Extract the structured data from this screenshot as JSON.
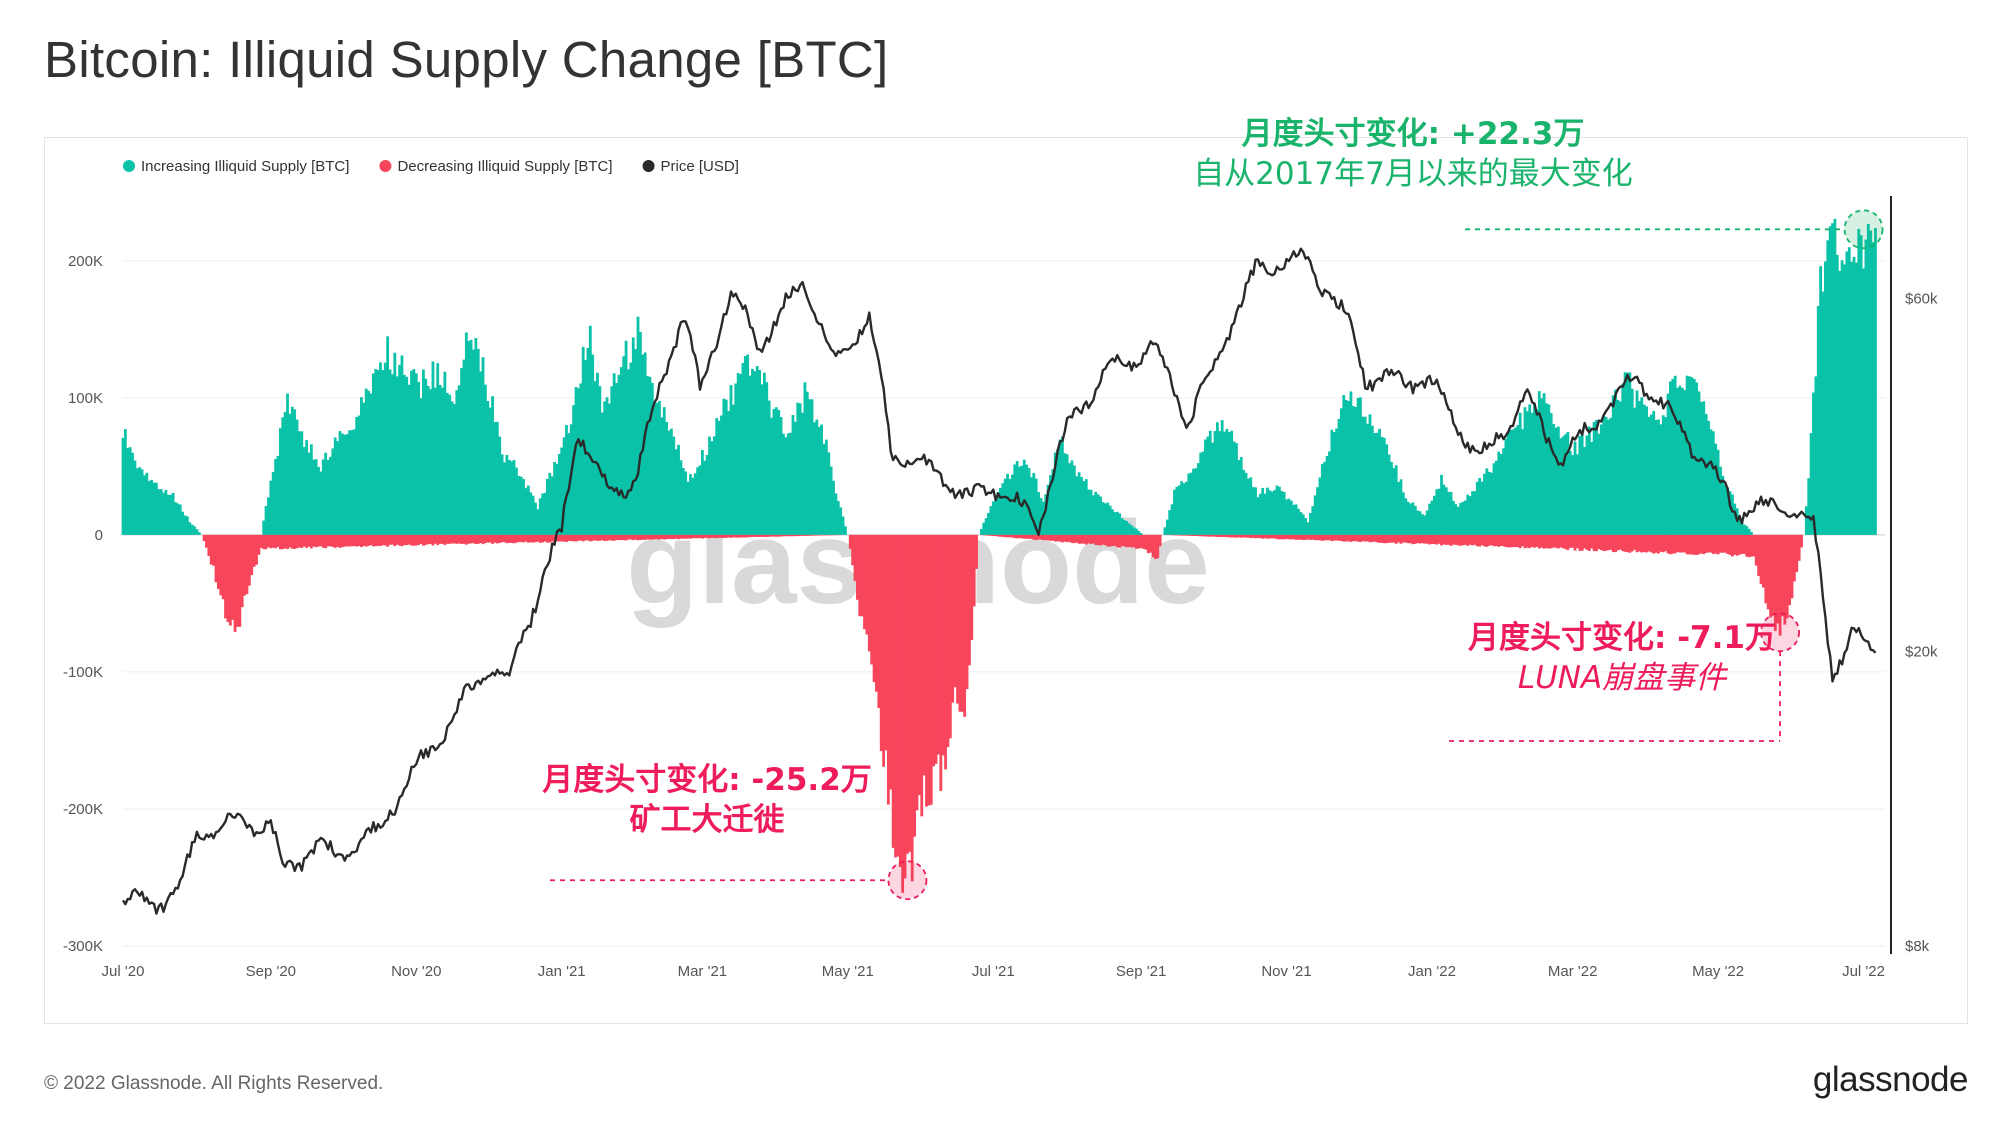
{
  "title": "Bitcoin: Illiquid Supply Change [BTC]",
  "footer": {
    "copyright": "© 2022 Glassnode. All Rights Reserved.",
    "logo": "glassnode"
  },
  "watermark": "glassnode",
  "annotations": {
    "top": {
      "line1": "月度头寸变化: +22.3万",
      "line2": "自从2017年7月以来的最大变化"
    },
    "middle": {
      "line1": "月度头寸变化: -25.2万",
      "line2": "矿工大迁徙"
    },
    "right": {
      "line1": "月度头寸变化: -7.1万",
      "line2": "LUNA崩盘事件"
    }
  },
  "colors": {
    "increase": "#0ac2a8",
    "decrease": "#f7465b",
    "price": "#2a2a2a",
    "annotation_green": "#19b36b",
    "annotation_red": "#ee1c5a"
  },
  "chart_data": {
    "type": "bar",
    "legend_position": "top-left",
    "grid": true,
    "legend": [
      {
        "name": "Increasing Illiquid Supply [BTC]",
        "color": "#0ac2a8"
      },
      {
        "name": "Decreasing Illiquid Supply [BTC]",
        "color": "#f7465b"
      },
      {
        "name": "Price [USD]",
        "color": "#2a2a2a"
      }
    ],
    "x_range": [
      "2020-07-01",
      "2022-07-10"
    ],
    "x_ticks": [
      "Jul '20",
      "Sep '20",
      "Nov '20",
      "Jan '21",
      "Mar '21",
      "May '21",
      "Jul '21",
      "Sep '21",
      "Nov '21",
      "Jan '22",
      "Mar '22",
      "May '22",
      "Jul '22"
    ],
    "x_tick_dates": [
      "2020-07-01",
      "2020-09-01",
      "2020-11-01",
      "2021-01-01",
      "2021-03-01",
      "2021-05-01",
      "2021-07-01",
      "2021-09-01",
      "2021-11-01",
      "2022-01-01",
      "2022-03-01",
      "2022-05-01",
      "2022-07-01"
    ],
    "y_left": {
      "ticks": [
        "200K",
        "100K",
        "0",
        "-100K",
        "-200K",
        "-300K"
      ],
      "tick_values": [
        200000,
        100000,
        0,
        -100000,
        -200000,
        -300000
      ],
      "range": [
        -300000,
        240000
      ]
    },
    "y_right": {
      "scale": "log",
      "ticks": [
        "$60k",
        "$20k",
        "$8k"
      ],
      "tick_values": [
        60000,
        20000,
        8000
      ],
      "range": [
        8000,
        80000
      ]
    },
    "series": [
      {
        "name": "Increasing Illiquid Supply [BTC]",
        "kind": "bar",
        "points": [
          [
            "2020-07-01",
            75000
          ],
          [
            "2020-07-08",
            50000
          ],
          [
            "2020-07-15",
            36000
          ],
          [
            "2020-07-22",
            28000
          ],
          [
            "2020-07-29",
            10000
          ],
          [
            "2020-08-03",
            0
          ],
          [
            "2020-08-28",
            0
          ],
          [
            "2020-09-01",
            40000
          ],
          [
            "2020-09-08",
            95000
          ],
          [
            "2020-09-15",
            70000
          ],
          [
            "2020-09-22",
            50000
          ],
          [
            "2020-09-29",
            68000
          ],
          [
            "2020-10-06",
            80000
          ],
          [
            "2020-10-13",
            112000
          ],
          [
            "2020-10-20",
            132000
          ],
          [
            "2020-10-27",
            118000
          ],
          [
            "2020-11-03",
            110000
          ],
          [
            "2020-11-10",
            118000
          ],
          [
            "2020-11-17",
            102000
          ],
          [
            "2020-11-24",
            148000
          ],
          [
            "2020-12-01",
            108000
          ],
          [
            "2020-12-08",
            58000
          ],
          [
            "2020-12-15",
            45000
          ],
          [
            "2020-12-22",
            20000
          ],
          [
            "2020-12-29",
            50000
          ],
          [
            "2021-01-05",
            85000
          ],
          [
            "2021-01-12",
            150000
          ],
          [
            "2021-01-19",
            90000
          ],
          [
            "2021-01-26",
            125000
          ],
          [
            "2021-02-02",
            145000
          ],
          [
            "2021-02-09",
            100000
          ],
          [
            "2021-02-16",
            75000
          ],
          [
            "2021-02-23",
            40000
          ],
          [
            "2021-03-02",
            60000
          ],
          [
            "2021-03-09",
            90000
          ],
          [
            "2021-03-16",
            110000
          ],
          [
            "2021-03-23",
            132000
          ],
          [
            "2021-03-30",
            90000
          ],
          [
            "2021-04-06",
            75000
          ],
          [
            "2021-04-13",
            103000
          ],
          [
            "2021-04-20",
            80000
          ],
          [
            "2021-04-27",
            25000
          ],
          [
            "2021-05-01",
            0
          ],
          [
            "2021-06-25",
            0
          ],
          [
            "2021-07-01",
            25000
          ],
          [
            "2021-07-08",
            45000
          ],
          [
            "2021-07-15",
            55000
          ],
          [
            "2021-07-22",
            25000
          ],
          [
            "2021-07-29",
            70000
          ],
          [
            "2021-08-05",
            45000
          ],
          [
            "2021-08-12",
            32000
          ],
          [
            "2021-08-19",
            20000
          ],
          [
            "2021-08-26",
            10000
          ],
          [
            "2021-09-02",
            0
          ],
          [
            "2021-09-10",
            0
          ],
          [
            "2021-09-15",
            30000
          ],
          [
            "2021-09-22",
            45000
          ],
          [
            "2021-09-29",
            68000
          ],
          [
            "2021-10-06",
            80000
          ],
          [
            "2021-10-13",
            55000
          ],
          [
            "2021-10-20",
            30000
          ],
          [
            "2021-10-27",
            35000
          ],
          [
            "2021-11-03",
            25000
          ],
          [
            "2021-11-10",
            10000
          ],
          [
            "2021-11-17",
            55000
          ],
          [
            "2021-11-24",
            95000
          ],
          [
            "2021-12-01",
            100000
          ],
          [
            "2021-12-08",
            80000
          ],
          [
            "2021-12-15",
            55000
          ],
          [
            "2021-12-22",
            25000
          ],
          [
            "2021-12-29",
            15000
          ],
          [
            "2022-01-05",
            40000
          ],
          [
            "2022-01-12",
            20000
          ],
          [
            "2022-01-19",
            35000
          ],
          [
            "2022-01-26",
            50000
          ],
          [
            "2022-02-02",
            72000
          ],
          [
            "2022-02-09",
            88000
          ],
          [
            "2022-02-16",
            103000
          ],
          [
            "2022-02-23",
            80000
          ],
          [
            "2022-03-02",
            62000
          ],
          [
            "2022-03-09",
            75000
          ],
          [
            "2022-03-16",
            85000
          ],
          [
            "2022-03-23",
            113000
          ],
          [
            "2022-03-30",
            95000
          ],
          [
            "2022-04-06",
            78000
          ],
          [
            "2022-04-13",
            112000
          ],
          [
            "2022-04-20",
            108000
          ],
          [
            "2022-04-27",
            90000
          ],
          [
            "2022-05-04",
            40000
          ],
          [
            "2022-05-11",
            10000
          ],
          [
            "2022-05-16",
            0
          ],
          [
            "2022-06-06",
            0
          ],
          [
            "2022-06-09",
            68000
          ],
          [
            "2022-06-13",
            180000
          ],
          [
            "2022-06-16",
            230000
          ],
          [
            "2022-06-23",
            200000
          ],
          [
            "2022-06-30",
            205000
          ],
          [
            "2022-07-06",
            222000
          ]
        ]
      },
      {
        "name": "Decreasing Illiquid Supply [BTC]",
        "kind": "bar",
        "points": [
          [
            "2020-08-03",
            0
          ],
          [
            "2020-08-08",
            -25000
          ],
          [
            "2020-08-13",
            -58000
          ],
          [
            "2020-08-18",
            -68000
          ],
          [
            "2020-08-23",
            -35000
          ],
          [
            "2020-08-28",
            -10000
          ],
          [
            "2021-05-01",
            0
          ],
          [
            "2021-05-06",
            -55000
          ],
          [
            "2021-05-11",
            -95000
          ],
          [
            "2021-05-16",
            -158000
          ],
          [
            "2021-05-21",
            -232000
          ],
          [
            "2021-05-26",
            -252000
          ],
          [
            "2021-05-31",
            -205000
          ],
          [
            "2021-06-05",
            -180000
          ],
          [
            "2021-06-10",
            -175000
          ],
          [
            "2021-06-15",
            -120000
          ],
          [
            "2021-06-20",
            -125000
          ],
          [
            "2021-06-25",
            0
          ],
          [
            "2021-09-02",
            -10000
          ],
          [
            "2021-09-08",
            -18000
          ],
          [
            "2021-09-10",
            0
          ],
          [
            "2022-05-16",
            -15000
          ],
          [
            "2022-05-22",
            -55000
          ],
          [
            "2022-05-27",
            -71000
          ],
          [
            "2022-06-01",
            -45000
          ],
          [
            "2022-06-06",
            0
          ]
        ]
      },
      {
        "name": "Price [USD]",
        "kind": "line",
        "axis": "right",
        "points": [
          [
            "2020-07-01",
            9200
          ],
          [
            "2020-07-15",
            9150
          ],
          [
            "2020-07-25",
            9500
          ],
          [
            "2020-08-01",
            11300
          ],
          [
            "2020-08-15",
            11800
          ],
          [
            "2020-09-01",
            11700
          ],
          [
            "2020-09-05",
            10200
          ],
          [
            "2020-09-20",
            10800
          ],
          [
            "2020-10-01",
            10700
          ],
          [
            "2020-10-15",
            11400
          ],
          [
            "2020-10-31",
            13700
          ],
          [
            "2020-11-15",
            16000
          ],
          [
            "2020-11-30",
            19000
          ],
          [
            "2020-12-10",
            18300
          ],
          [
            "2020-12-20",
            23000
          ],
          [
            "2021-01-01",
            29000
          ],
          [
            "2021-01-08",
            40000
          ],
          [
            "2021-01-20",
            33000
          ],
          [
            "2021-02-01",
            34000
          ],
          [
            "2021-02-10",
            44000
          ],
          [
            "2021-02-21",
            57000
          ],
          [
            "2021-02-28",
            45000
          ],
          [
            "2021-03-13",
            61000
          ],
          [
            "2021-03-25",
            52000
          ],
          [
            "2021-04-13",
            63500
          ],
          [
            "2021-04-25",
            49000
          ],
          [
            "2021-05-10",
            57000
          ],
          [
            "2021-05-19",
            37000
          ],
          [
            "2021-05-31",
            36000
          ],
          [
            "2021-06-22",
            32000
          ],
          [
            "2021-07-01",
            33500
          ],
          [
            "2021-07-20",
            29800
          ],
          [
            "2021-08-01",
            40000
          ],
          [
            "2021-08-15",
            47000
          ],
          [
            "2021-09-06",
            51500
          ],
          [
            "2021-09-21",
            41000
          ],
          [
            "2021-10-01",
            48000
          ],
          [
            "2021-10-20",
            66000
          ],
          [
            "2021-11-08",
            68000
          ],
          [
            "2021-11-28",
            55000
          ],
          [
            "2021-12-04",
            47000
          ],
          [
            "2021-12-31",
            46300
          ],
          [
            "2022-01-21",
            36000
          ],
          [
            "2022-02-10",
            44000
          ],
          [
            "2022-02-24",
            36000
          ],
          [
            "2022-03-28",
            47000
          ],
          [
            "2022-04-15",
            40000
          ],
          [
            "2022-05-09",
            31000
          ],
          [
            "2022-05-31",
            31500
          ],
          [
            "2022-06-10",
            29500
          ],
          [
            "2022-06-18",
            18500
          ],
          [
            "2022-06-26",
            21000
          ],
          [
            "2022-07-06",
            20200
          ]
        ]
      }
    ],
    "highlights": [
      {
        "date": "2022-07-01",
        "value": 223000,
        "color": "#19b36b"
      },
      {
        "date": "2021-05-26",
        "value": -252000,
        "color": "#ee1c5a"
      },
      {
        "date": "2022-05-27",
        "value": -71000,
        "color": "#ee1c5a"
      }
    ]
  }
}
